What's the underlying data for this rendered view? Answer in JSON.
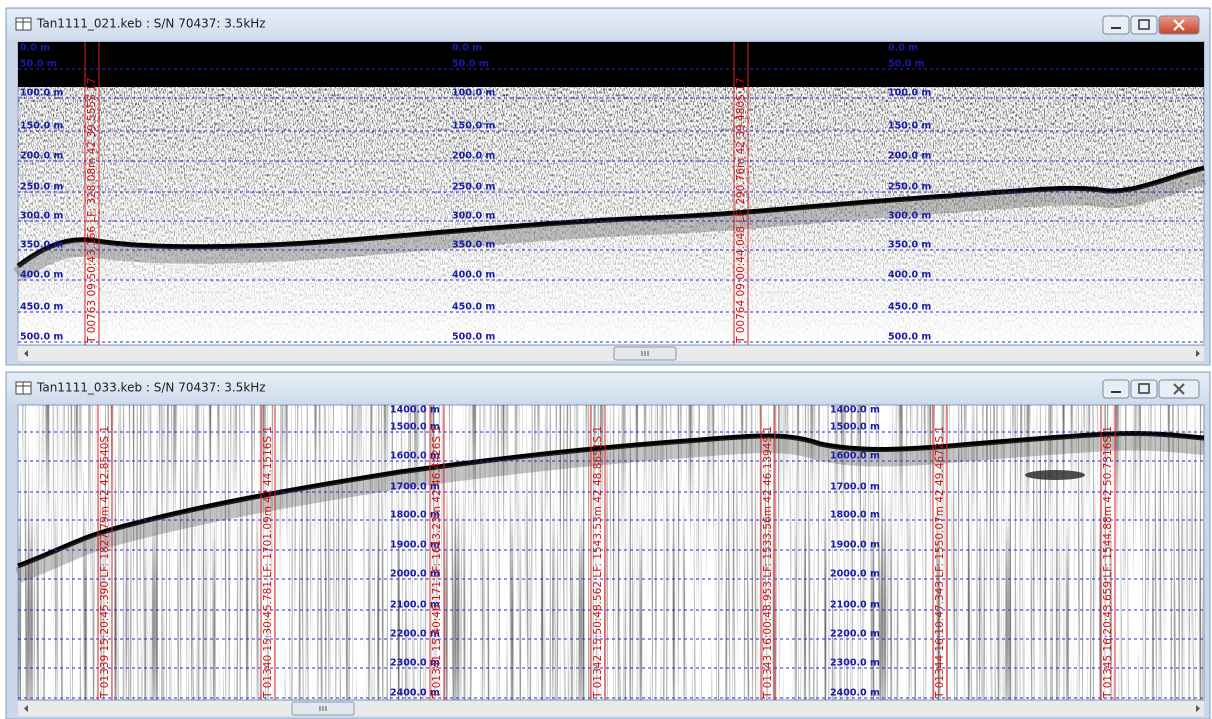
{
  "windows": [
    {
      "title": "Tan1111_021.keb : S/N 70437: 3.5kHz",
      "depth_labels": [
        "0.0 m",
        "50.0 m",
        "100.0 m",
        "150.0 m",
        "200.0 m",
        "250.0 m",
        "300.0 m",
        "350.0 m",
        "400.0 m",
        "450.0 m",
        "500.0 m"
      ],
      "annotations": [
        "T 00763  09:50:43.166    LF: 328.08m    42 39.555S 17",
        "T 00764  09:00:44.048    LF: 290.76m    42 39.480S 17"
      ]
    },
    {
      "title": "Tan1111_033.keb : S/N 70437: 3.5kHz",
      "depth_labels": [
        "1400.0 m",
        "1500.0 m",
        "1600.0 m",
        "1700.0 m",
        "1800.0 m",
        "1900.0 m",
        "2000.0 m",
        "2100.0 m",
        "2200.0 m",
        "2300.0 m",
        "2400.0 m"
      ],
      "annotations": [
        "T 01339  15:20:45.390    LF: 1827.79m    42 42.8540S 1",
        "T 01340  15:30:45.781    LF: 1701.09m    42 44.1516S 1",
        "T 01341  15:40:46.171    LF: 1613.23m    42 46.4426S 1",
        "T 01342  15:50:48.562    LF: 1543.53m    42 48.8651S 1",
        "T 01343  16:00:48.953    LF: 1533.56m    42 46.1394S 1",
        "T 01344  16:10:47.343    LF: 1550.07m    42 49.4672S 1",
        "T 01345  16:20:43.659    LF: 1544.88m    42 50.7316S 1"
      ]
    }
  ]
}
